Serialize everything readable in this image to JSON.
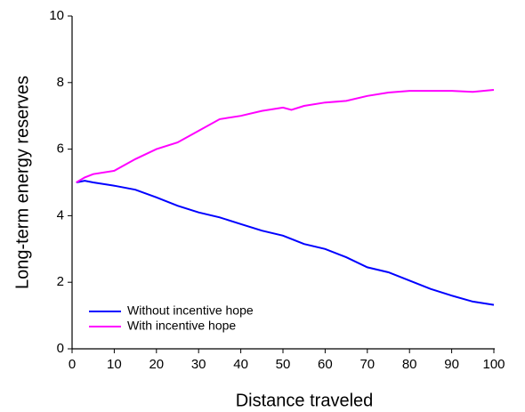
{
  "chart_data": {
    "type": "line",
    "x_label": "Distance traveled",
    "y_label": "Long-term energy reserves",
    "x": [
      1,
      3,
      5,
      10,
      15,
      20,
      25,
      30,
      35,
      40,
      45,
      50,
      52,
      55,
      60,
      65,
      70,
      75,
      80,
      85,
      90,
      95,
      100
    ],
    "series": [
      {
        "name": "Without incentive hope",
        "color": "#0000ff",
        "values": [
          5.0,
          5.05,
          5.0,
          4.9,
          4.78,
          4.55,
          4.3,
          4.1,
          3.95,
          3.75,
          3.55,
          3.4,
          3.3,
          3.15,
          3.0,
          2.75,
          2.45,
          2.3,
          2.05,
          1.8,
          1.6,
          1.42,
          1.32
        ]
      },
      {
        "name": "With incentive hope",
        "color": "#ff00ff",
        "values": [
          5.0,
          5.15,
          5.25,
          5.35,
          5.7,
          6.0,
          6.2,
          6.55,
          6.9,
          7.0,
          7.15,
          7.25,
          7.18,
          7.3,
          7.4,
          7.45,
          7.6,
          7.7,
          7.75,
          7.75,
          7.75,
          7.72,
          7.78
        ]
      }
    ],
    "xlim": [
      0,
      100
    ],
    "xticks": [
      0,
      10,
      20,
      30,
      40,
      50,
      60,
      70,
      80,
      90,
      100
    ],
    "ylim": [
      0,
      10
    ],
    "yticks": [
      0,
      2,
      4,
      6,
      8,
      10
    ],
    "grid": false,
    "legend": "lower left"
  }
}
